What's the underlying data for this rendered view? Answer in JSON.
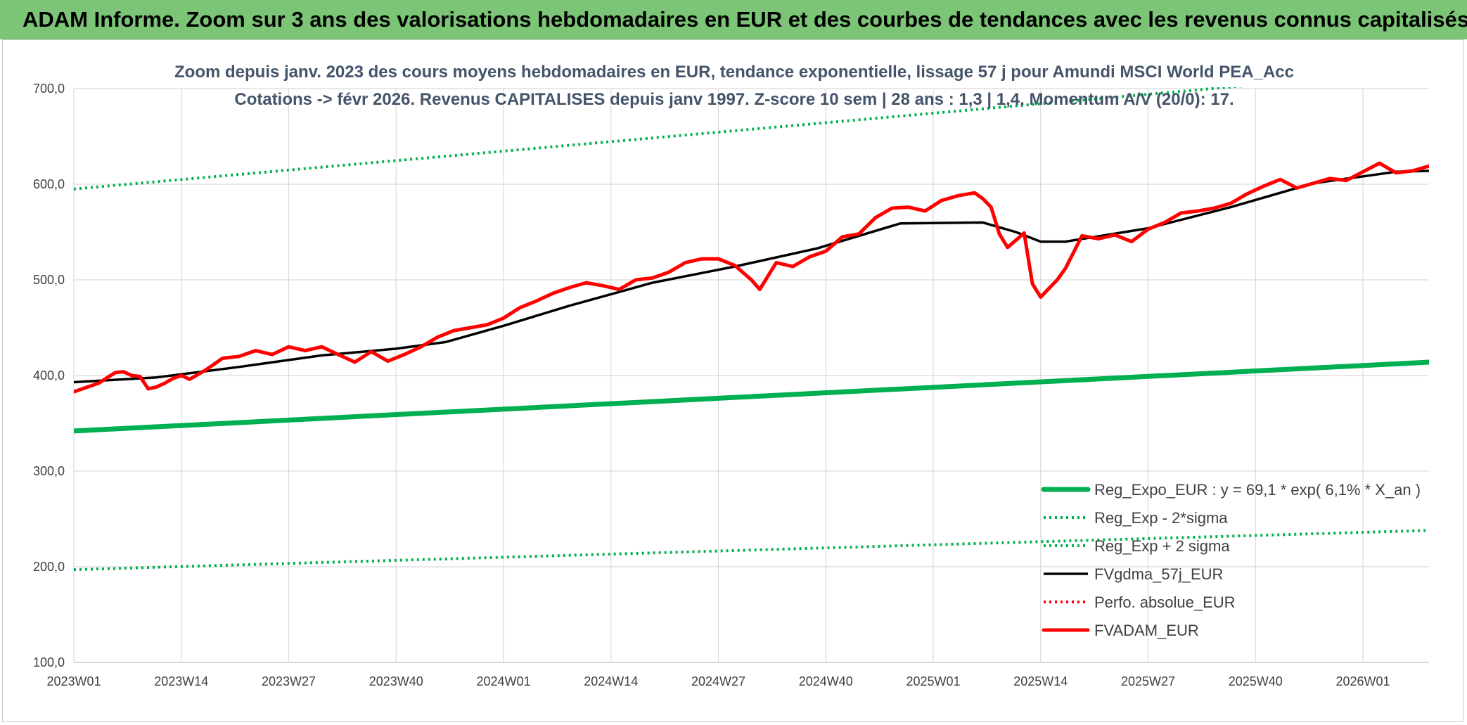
{
  "banner": {
    "text": "ADAM Informe. Zoom sur 3 ans des valorisations hebdomadaires en EUR et des courbes de tendances avec les revenus connus capitalisés",
    "background": "#7cc576"
  },
  "chart_data": {
    "type": "line",
    "title_line1": "Zoom depuis janv. 2023 des cours moyens hebdomadaires en EUR, tendance exponentielle, lissage 57 j pour Amundi MSCI World PEA_Acc",
    "title_line2": "Cotations -> févr 2026. Revenus CAPITALISES depuis janv 1997. Z-score 10 sem | 28 ans : 1,3 | 1,4. Momentum A/V (20/0): 17.",
    "ylim": [
      100,
      700
    ],
    "y_ticks": [
      "100,0",
      "200,0",
      "300,0",
      "400,0",
      "500,0",
      "600,0",
      "700,0"
    ],
    "x_tick_labels": [
      "2023W01",
      "2023W14",
      "2023W27",
      "2023W40",
      "2024W01",
      "2024W14",
      "2024W27",
      "2024W40",
      "2025W01",
      "2025W14",
      "2025W27",
      "2025W40",
      "2026W01"
    ],
    "x_tick_weeks": [
      0,
      13,
      26,
      39,
      52,
      65,
      78,
      91,
      104,
      117,
      130,
      143,
      156
    ],
    "x_range_weeks": [
      0,
      164
    ],
    "grid": "horizontal",
    "legend_position": "bottom-right",
    "series": [
      {
        "name": "Reg_Expo_EUR : y = 69,1 * exp( 6,1% *  X_an )",
        "color": "#00b050",
        "style": "thick-solid",
        "weeks": [
          0,
          164
        ],
        "values": [
          342,
          414
        ]
      },
      {
        "name": "Reg_Exp - 2*sigma",
        "color": "#00b050",
        "style": "dotted",
        "weeks": [
          0,
          164
        ],
        "values": [
          197,
          238
        ]
      },
      {
        "name": "Reg_Exp + 2 sigma",
        "color": "#00b050",
        "style": "dotted",
        "weeks": [
          0,
          164
        ],
        "values": [
          595,
          720
        ]
      },
      {
        "name": "FVgdma_57j_EUR",
        "color": "#000000",
        "style": "solid",
        "weeks": [
          0,
          10,
          20,
          30,
          39,
          45,
          52,
          60,
          70,
          80,
          90,
          100,
          110,
          114,
          117,
          120,
          130,
          140,
          150,
          160,
          164
        ],
        "values": [
          393,
          398,
          409,
          421,
          428,
          435,
          452,
          473,
          497,
          514,
          533,
          559,
          560,
          550,
          540,
          540,
          554,
          576,
          601,
          613,
          614
        ]
      },
      {
        "name": "Perfo. absolue_EUR",
        "color": "#ff0000",
        "style": "dotted",
        "weeks": [],
        "values": []
      },
      {
        "name": "FVADAM_EUR",
        "color": "#ff0000",
        "style": "thick-solid",
        "weeks": [
          0,
          3,
          5,
          6,
          7,
          8,
          9,
          10,
          11,
          12,
          13,
          14,
          16,
          18,
          20,
          22,
          24,
          26,
          28,
          30,
          32,
          34,
          36,
          38,
          40,
          42,
          44,
          46,
          48,
          50,
          52,
          54,
          56,
          58,
          60,
          62,
          64,
          66,
          68,
          70,
          72,
          74,
          76,
          78,
          80,
          82,
          83,
          85,
          87,
          89,
          91,
          93,
          95,
          97,
          99,
          101,
          103,
          105,
          107,
          109,
          110,
          111,
          112,
          113,
          115,
          116,
          117,
          118,
          119,
          120,
          122,
          124,
          126,
          128,
          130,
          132,
          134,
          136,
          138,
          140,
          142,
          144,
          146,
          148,
          150,
          152,
          154,
          156,
          158,
          160,
          162,
          164
        ],
        "values": [
          383,
          392,
          403,
          404,
          400,
          399,
          386,
          388,
          392,
          397,
          400,
          396,
          406,
          418,
          420,
          426,
          422,
          430,
          426,
          430,
          422,
          414,
          425,
          415,
          422,
          430,
          440,
          447,
          450,
          453,
          460,
          471,
          478,
          486,
          492,
          497,
          494,
          490,
          500,
          502,
          508,
          518,
          522,
          522,
          515,
          500,
          490,
          518,
          514,
          524,
          530,
          545,
          548,
          565,
          575,
          576,
          572,
          583,
          588,
          591,
          585,
          576,
          548,
          534,
          549,
          496,
          482,
          491,
          500,
          512,
          546,
          543,
          547,
          540,
          553,
          560,
          570,
          572,
          575,
          580,
          590,
          598,
          605,
          596,
          601,
          606,
          604,
          613,
          622,
          612,
          614,
          619
        ]
      }
    ]
  }
}
